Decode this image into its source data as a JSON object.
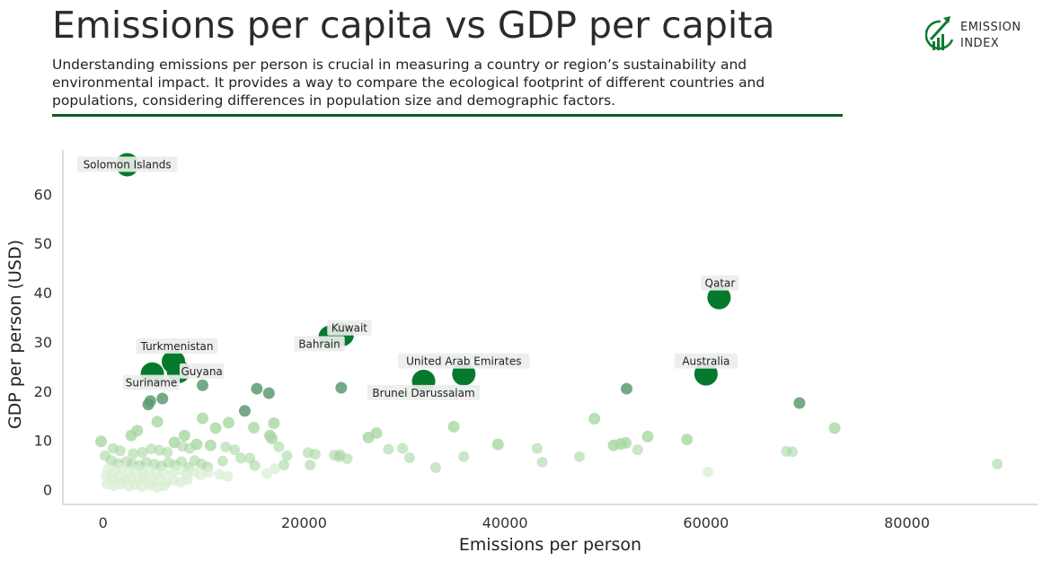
{
  "header": {
    "title": "Emissions per capita vs GDP per capita",
    "subtitle": "Understanding emissions per person is crucial in measuring a country or region’s sustainability and environmental impact. It provides a way to compare the ecological footprint of different countries and populations, considering differences in population size and demographic factors."
  },
  "logo": {
    "line1": "EMISSION",
    "line2": "INDEX",
    "icon": "growth-chart-icon"
  },
  "colors": {
    "accent": "#0d5a2b",
    "highlight": "#067a2c",
    "mid": "#5e9a73",
    "light": "#a7d7a2",
    "faint": "#d8eed2"
  },
  "chart_data": {
    "type": "scatter",
    "xlabel": "Emissions per person",
    "ylabel": "GDP per person (USD)",
    "xlim": [
      -4000,
      93000
    ],
    "ylim": [
      -3,
      69
    ],
    "xticks": [
      0,
      20000,
      40000,
      60000,
      80000
    ],
    "yticks": [
      0,
      10,
      20,
      30,
      40,
      50,
      60
    ],
    "grid": false,
    "highlighted": [
      {
        "label": "Solomon Islands",
        "x": 2400,
        "y": 66
      },
      {
        "label": "Qatar",
        "x": 61300,
        "y": 39
      },
      {
        "label": "Kuwait",
        "x": 23800,
        "y": 31.5
      },
      {
        "label": "Bahrain",
        "x": 22600,
        "y": 31
      },
      {
        "label": "Turkmenistan",
        "x": 7000,
        "y": 26
      },
      {
        "label": "Guyana",
        "x": 7500,
        "y": 24
      },
      {
        "label": "Suriname",
        "x": 4900,
        "y": 23.5
      },
      {
        "label": "United Arab Emirates",
        "x": 35900,
        "y": 23.5
      },
      {
        "label": "Brunei Darussalam",
        "x": 31900,
        "y": 22
      },
      {
        "label": "Australia",
        "x": 60000,
        "y": 23.5
      }
    ],
    "points": [
      [
        4500,
        17.3
      ],
      [
        5900,
        18.5
      ],
      [
        4700,
        18
      ],
      [
        9900,
        21.2
      ],
      [
        15300,
        20.5
      ],
      [
        16500,
        19.6
      ],
      [
        23700,
        20.7
      ],
      [
        52100,
        20.5
      ],
      [
        69300,
        17.6
      ],
      [
        9900,
        14.5
      ],
      [
        5400,
        13.8
      ],
      [
        12500,
        13.6
      ],
      [
        14100,
        16
      ],
      [
        15000,
        12.6
      ],
      [
        17000,
        13.5
      ],
      [
        11200,
        12.5
      ],
      [
        3400,
        12
      ],
      [
        2800,
        11
      ],
      [
        34900,
        12.8
      ],
      [
        48900,
        14.4
      ],
      [
        72800,
        12.5
      ],
      [
        8100,
        11
      ],
      [
        16600,
        11
      ],
      [
        27200,
        11.5
      ],
      [
        26400,
        10.6
      ],
      [
        16800,
        10.4
      ],
      [
        54200,
        10.8
      ],
      [
        51500,
        9.3
      ],
      [
        52000,
        9.5
      ],
      [
        58100,
        10.2
      ],
      [
        68000,
        7.8
      ],
      [
        68600,
        7.7
      ],
      [
        -200,
        9.8
      ],
      [
        1000,
        8.4
      ],
      [
        1700,
        7.9
      ],
      [
        3000,
        7.3
      ],
      [
        3900,
        7.6
      ],
      [
        4800,
        8.3
      ],
      [
        5600,
        8
      ],
      [
        6400,
        7.6
      ],
      [
        7100,
        9.6
      ],
      [
        7900,
        8.8
      ],
      [
        8600,
        8.4
      ],
      [
        9300,
        9.2
      ],
      [
        10700,
        9
      ],
      [
        12200,
        8.7
      ],
      [
        13100,
        8.1
      ],
      [
        17500,
        8.7
      ],
      [
        18300,
        6.9
      ],
      [
        20400,
        7.5
      ],
      [
        21100,
        7.2
      ],
      [
        23000,
        7
      ],
      [
        23500,
        6.7
      ],
      [
        24300,
        6.3
      ],
      [
        28400,
        8.2
      ],
      [
        29800,
        8.4
      ],
      [
        30500,
        6.5
      ],
      [
        35900,
        6.7
      ],
      [
        39300,
        9.2
      ],
      [
        43200,
        8.4
      ],
      [
        43700,
        5.6
      ],
      [
        47400,
        6.7
      ],
      [
        50800,
        9
      ],
      [
        53200,
        8.1
      ],
      [
        200,
        6.9
      ],
      [
        800,
        5.9
      ],
      [
        1500,
        5.3
      ],
      [
        2300,
        5.7
      ],
      [
        2900,
        5.2
      ],
      [
        3600,
        4.9
      ],
      [
        4300,
        5.6
      ],
      [
        5100,
        5.2
      ],
      [
        5800,
        4.8
      ],
      [
        6500,
        5.5
      ],
      [
        7200,
        5
      ],
      [
        7800,
        5.7
      ],
      [
        8500,
        4.5
      ],
      [
        9100,
        5.9
      ],
      [
        9800,
        5.2
      ],
      [
        10400,
        4.6
      ],
      [
        11900,
        5.8
      ],
      [
        13700,
        6.4
      ],
      [
        14600,
        6.4
      ],
      [
        15100,
        4.9
      ],
      [
        17100,
        4.3
      ],
      [
        18000,
        5
      ],
      [
        20600,
        5
      ],
      [
        23600,
        7.1
      ],
      [
        33100,
        4.5
      ],
      [
        60200,
        3.6
      ],
      [
        89000,
        5.2
      ],
      [
        500,
        4.2
      ],
      [
        1200,
        3.8
      ],
      [
        1900,
        4.4
      ],
      [
        2500,
        3.5
      ],
      [
        3300,
        4
      ],
      [
        4000,
        3.3
      ],
      [
        4600,
        3.8
      ],
      [
        5300,
        3.1
      ],
      [
        6000,
        3.6
      ],
      [
        6900,
        3.4
      ],
      [
        7600,
        4
      ],
      [
        8300,
        3.2
      ],
      [
        9000,
        3.7
      ],
      [
        9700,
        3
      ],
      [
        10500,
        3.5
      ],
      [
        11600,
        3.1
      ],
      [
        12400,
        2.7
      ],
      [
        16300,
        3.3
      ],
      [
        300,
        2.8
      ],
      [
        900,
        2.2
      ],
      [
        1600,
        2.6
      ],
      [
        2200,
        2
      ],
      [
        2800,
        2.4
      ],
      [
        3500,
        1.8
      ],
      [
        4100,
        2.3
      ],
      [
        4800,
        1.7
      ],
      [
        5500,
        2.1
      ],
      [
        6300,
        1.6
      ],
      [
        7000,
        1.9
      ],
      [
        7700,
        1.5
      ],
      [
        8400,
        2
      ],
      [
        400,
        1.2
      ],
      [
        1100,
        0.8
      ],
      [
        1800,
        1.1
      ],
      [
        2600,
        0.7
      ],
      [
        3200,
        1
      ],
      [
        3900,
        0.6
      ],
      [
        4700,
        0.9
      ],
      [
        5400,
        0.5
      ],
      [
        6100,
        0.8
      ]
    ]
  }
}
